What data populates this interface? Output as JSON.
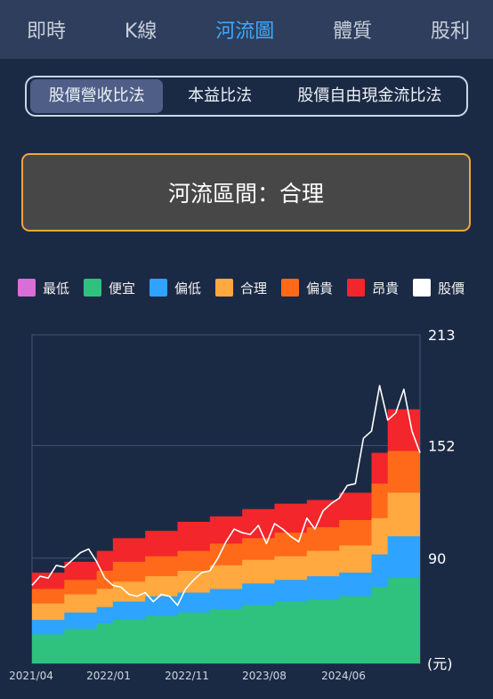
{
  "nav": {
    "tabs": [
      {
        "label": "即時"
      },
      {
        "label": "K線"
      },
      {
        "label": "河流圖",
        "active": true
      },
      {
        "label": "體質"
      },
      {
        "label": "股利"
      }
    ]
  },
  "methods": {
    "tabs": [
      {
        "label": "股價營收比法",
        "active": true
      },
      {
        "label": "本益比法"
      },
      {
        "label": "股價自由現金流比法"
      }
    ]
  },
  "status": {
    "text": "河流區間：合理"
  },
  "colors": {
    "accent": "#3fa9ff",
    "background": "#1b2a44",
    "status_border": "#f0a63c"
  },
  "legend": [
    {
      "label": "最低",
      "color": "#d86fd8"
    },
    {
      "label": "便宜",
      "color": "#2ec27e"
    },
    {
      "label": "偏低",
      "color": "#2ea3ff"
    },
    {
      "label": "合理",
      "color": "#ffa940"
    },
    {
      "label": "偏貴",
      "color": "#ff6a1a"
    },
    {
      "label": "昂貴",
      "color": "#f2262b"
    },
    {
      "label": "股價",
      "color": "#ffffff"
    }
  ],
  "chart_data": {
    "type": "area",
    "x_ticks": [
      "2021/04",
      "2022/01",
      "2022/11",
      "2023/08",
      "2024/06"
    ],
    "y_ticks": [
      213,
      152,
      90
    ],
    "y_unit": "(元)",
    "ylim": [
      32,
      213
    ],
    "x_range": [
      0,
      48
    ],
    "grid": true,
    "legend_position": "top",
    "bands_top": {
      "x": [
        0,
        4,
        8,
        10,
        14,
        18,
        22,
        26,
        30,
        34,
        38,
        42,
        44,
        48
      ],
      "series": [
        {
          "name": "便宜",
          "values": [
            48,
            51,
            54,
            56,
            58,
            60,
            62,
            64,
            66,
            67,
            69,
            74,
            79,
            88
          ]
        },
        {
          "name": "偏低",
          "values": [
            56,
            60,
            63,
            66,
            69,
            71,
            73,
            76,
            78,
            80,
            82,
            92,
            102,
            114
          ]
        },
        {
          "name": "合理",
          "values": [
            65,
            70,
            73,
            77,
            80,
            83,
            86,
            89,
            91,
            94,
            97,
            112,
            126,
            140
          ]
        },
        {
          "name": "偏貴",
          "values": [
            73,
            78,
            83,
            88,
            91,
            94,
            98,
            101,
            104,
            107,
            111,
            131,
            149,
            166
          ]
        },
        {
          "name": "昂貴",
          "values": [
            82,
            88,
            94,
            101,
            105,
            110,
            113,
            117,
            120,
            122,
            126,
            148,
            172,
            196
          ]
        }
      ]
    },
    "price": {
      "name": "股價",
      "x": [
        0,
        1,
        2,
        3,
        4,
        5,
        6,
        7,
        8,
        9,
        10,
        11,
        12,
        13,
        14,
        15,
        16,
        17,
        18,
        19,
        20,
        21,
        22,
        23,
        24,
        25,
        26,
        27,
        28,
        29,
        30,
        31,
        32,
        33,
        34,
        35,
        36,
        37,
        38,
        39,
        40,
        41,
        42,
        43,
        44,
        45,
        46,
        47,
        48
      ],
      "values": [
        75,
        80,
        79,
        86,
        85,
        89,
        93,
        95,
        88,
        79,
        75,
        74,
        70,
        69,
        71,
        66,
        70,
        69,
        64,
        73,
        78,
        82,
        83,
        90,
        99,
        106,
        104,
        103,
        108,
        98,
        109,
        106,
        102,
        99,
        112,
        106,
        116,
        120,
        123,
        130,
        131,
        156,
        160,
        185,
        166,
        170,
        183,
        160,
        148
      ]
    }
  }
}
